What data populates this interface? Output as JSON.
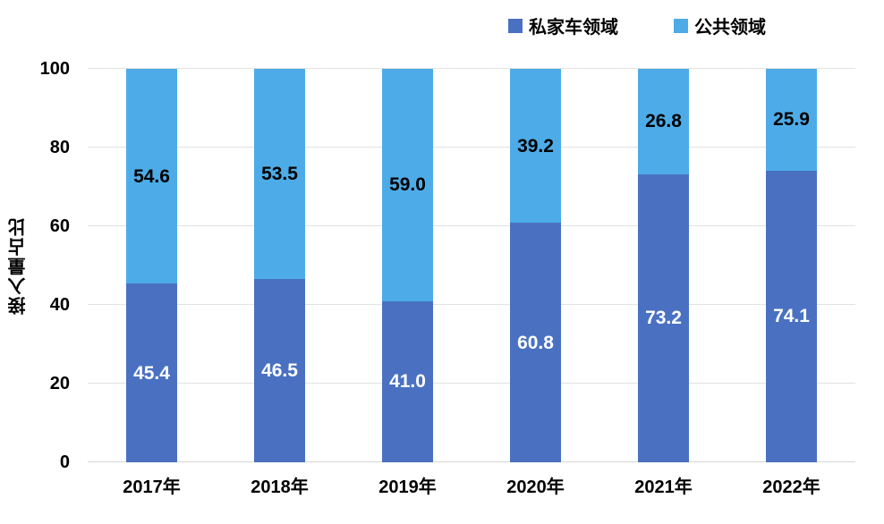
{
  "chart_data": {
    "type": "bar",
    "stacked": true,
    "orientation": "vertical",
    "categories": [
      "2017年",
      "2018年",
      "2019年",
      "2020年",
      "2021年",
      "2022年"
    ],
    "series": [
      {
        "name": "私家车领域",
        "color": "#4a71c1",
        "label_color": "#ffffff",
        "values": [
          45.4,
          46.5,
          41.0,
          60.8,
          73.2,
          74.1
        ]
      },
      {
        "name": "公共领域",
        "color": "#4dace8",
        "label_color": "#000000",
        "values": [
          54.6,
          53.5,
          59.0,
          39.2,
          26.8,
          25.9
        ]
      }
    ],
    "title": "",
    "xlabel": "",
    "ylabel": "接入量占比",
    "ylim": [
      0,
      100
    ],
    "yticks": [
      0,
      20,
      40,
      60,
      80,
      100
    ],
    "grid": "horizontal",
    "gridline_color": "#e2e2e2",
    "baseline_color": "#d6d6d6",
    "legend_position": "top-right",
    "value_label_decimals": 1
  }
}
